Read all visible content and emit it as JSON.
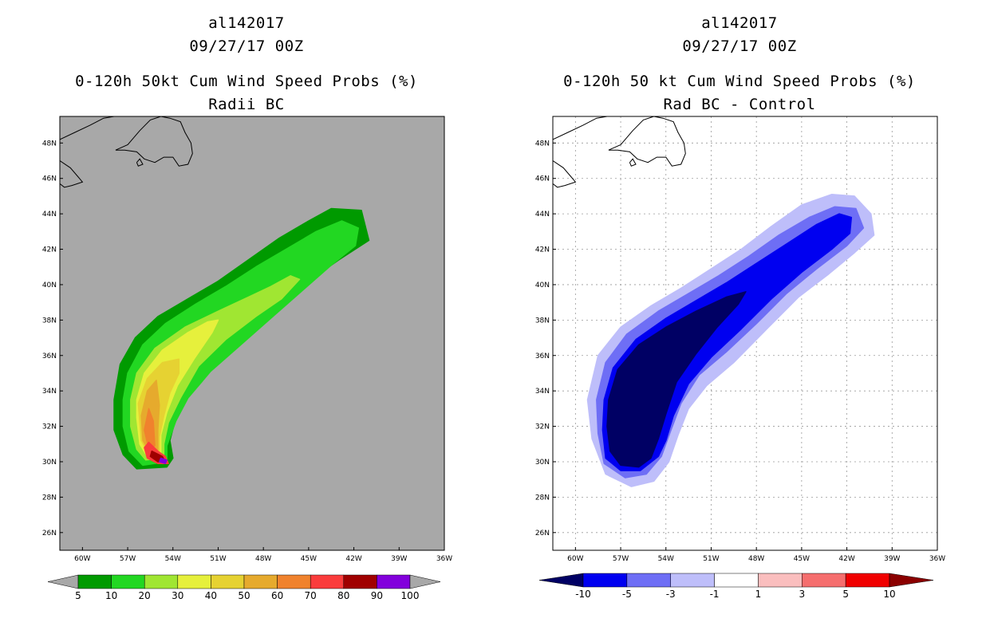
{
  "chart_data": [
    {
      "type": "contour-map",
      "title_lines": [
        "al142017",
        "09/27/17 00Z",
        "0-120h 50kt Cum Wind Speed Probs (%)",
        "Radii BC"
      ],
      "x_ticks": [
        "60W",
        "57W",
        "54W",
        "51W",
        "48W",
        "45W",
        "42W",
        "39W",
        "36W"
      ],
      "y_ticks": [
        "26N",
        "28N",
        "30N",
        "32N",
        "34N",
        "36N",
        "38N",
        "40N",
        "42N",
        "44N",
        "46N",
        "48N"
      ],
      "xlim": [
        -61.5,
        -36
      ],
      "ylim": [
        25,
        49.5
      ],
      "background_color": "#a8a8a8",
      "grid": false,
      "colorbar": {
        "labels": [
          "5",
          "10",
          "20",
          "30",
          "40",
          "50",
          "60",
          "70",
          "80",
          "90",
          "100"
        ],
        "colors": [
          "#009a00",
          "#22d722",
          "#a0e632",
          "#e6f03c",
          "#e6d232",
          "#e6aa2d",
          "#f0822d",
          "#fa3c3c",
          "#a00000",
          "#8200dc"
        ]
      },
      "contours": [
        {
          "level": 5,
          "color": "#009a00",
          "points": [
            [
              -57.9,
              33.5
            ],
            [
              -57.5,
              35.5
            ],
            [
              -56.5,
              37
            ],
            [
              -55,
              38.2
            ],
            [
              -53,
              39.2
            ],
            [
              -51,
              40.2
            ],
            [
              -49,
              41.4
            ],
            [
              -47,
              42.6
            ],
            [
              -45,
              43.6
            ],
            [
              -43.5,
              44.3
            ],
            [
              -41.5,
              44.2
            ],
            [
              -41,
              42.5
            ],
            [
              -43,
              41.4
            ],
            [
              -45,
              40.2
            ],
            [
              -47,
              38.8
            ],
            [
              -49,
              37.2
            ],
            [
              -51,
              35.6
            ],
            [
              -52.6,
              34.3
            ],
            [
              -53.7,
              32.8
            ],
            [
              -54.2,
              31.2
            ],
            [
              -54,
              30.2
            ],
            [
              -54.4,
              29.7
            ],
            [
              -56.4,
              29.6
            ],
            [
              -57.3,
              30.4
            ],
            [
              -57.9,
              31.8
            ]
          ]
        },
        {
          "level": 10,
          "color": "#22d722",
          "points": [
            [
              -57.3,
              33.5
            ],
            [
              -57,
              35
            ],
            [
              -56,
              36.6
            ],
            [
              -54.5,
              37.8
            ],
            [
              -52.5,
              38.9
            ],
            [
              -50.5,
              39.9
            ],
            [
              -48.5,
              41
            ],
            [
              -46.5,
              42
            ],
            [
              -44.5,
              43
            ],
            [
              -42.8,
              43.6
            ],
            [
              -41.7,
              43.2
            ],
            [
              -41.9,
              42.2
            ],
            [
              -43.5,
              41.1
            ],
            [
              -45.5,
              39.6
            ],
            [
              -47.5,
              38.1
            ],
            [
              -49.5,
              36.6
            ],
            [
              -51.5,
              35.1
            ],
            [
              -53,
              33.6
            ],
            [
              -53.8,
              32.3
            ],
            [
              -54.4,
              30.9
            ],
            [
              -54.4,
              30
            ],
            [
              -56,
              29.8
            ],
            [
              -56.9,
              30.6
            ],
            [
              -57.3,
              32
            ]
          ]
        },
        {
          "level": 20,
          "color": "#a0e632",
          "points": [
            [
              -56.8,
              33.5
            ],
            [
              -56.4,
              35
            ],
            [
              -55.2,
              36.4
            ],
            [
              -53.2,
              37.6
            ],
            [
              -51,
              38.5
            ],
            [
              -49,
              39.3
            ],
            [
              -47.5,
              39.9
            ],
            [
              -46.2,
              40.5
            ],
            [
              -45.6,
              40.3
            ],
            [
              -46.8,
              39.2
            ],
            [
              -48.5,
              38.2
            ],
            [
              -50.5,
              36.9
            ],
            [
              -52.3,
              35.4
            ],
            [
              -53.5,
              33.6
            ],
            [
              -54.3,
              32.2
            ],
            [
              -54.6,
              31
            ],
            [
              -54.6,
              30.2
            ],
            [
              -55.8,
              30.1
            ],
            [
              -56.4,
              30.7
            ],
            [
              -56.8,
              32
            ]
          ]
        },
        {
          "level": 30,
          "color": "#e6f03c",
          "points": [
            [
              -56.4,
              33.5
            ],
            [
              -55.9,
              35
            ],
            [
              -54.7,
              36.3
            ],
            [
              -53,
              37.3
            ],
            [
              -51.7,
              37.9
            ],
            [
              -51,
              38
            ],
            [
              -51.4,
              37.3
            ],
            [
              -52.6,
              35.8
            ],
            [
              -53.7,
              34.3
            ],
            [
              -54.4,
              32.8
            ],
            [
              -54.8,
              31.5
            ],
            [
              -54.8,
              30.3
            ],
            [
              -55.7,
              30.3
            ],
            [
              -56.2,
              31
            ],
            [
              -56.4,
              32.5
            ]
          ]
        },
        {
          "level": 40,
          "color": "#e6d232",
          "points": [
            [
              -56.3,
              33.3
            ],
            [
              -55.7,
              34.7
            ],
            [
              -54.7,
              35.6
            ],
            [
              -53.6,
              35.8
            ],
            [
              -53.6,
              35
            ],
            [
              -54.2,
              33.9
            ],
            [
              -54.6,
              32.6
            ],
            [
              -54.9,
              31.4
            ],
            [
              -54.9,
              30.4
            ],
            [
              -55.6,
              30.4
            ],
            [
              -56.1,
              31.2
            ]
          ]
        },
        {
          "level": 50,
          "color": "#e6aa2d",
          "points": [
            [
              -56.1,
              32.6
            ],
            [
              -55.7,
              34
            ],
            [
              -55.1,
              34.6
            ],
            [
              -54.9,
              33.2
            ],
            [
              -55,
              31.8
            ],
            [
              -55,
              30.5
            ],
            [
              -55.5,
              30.5
            ],
            [
              -56,
              31.2
            ]
          ]
        },
        {
          "level": 60,
          "color": "#f0822d",
          "points": [
            [
              -55.9,
              31.8
            ],
            [
              -55.6,
              33
            ],
            [
              -55.3,
              32.3
            ],
            [
              -55.2,
              30.9
            ],
            [
              -55.6,
              30.7
            ]
          ]
        },
        {
          "level": 70,
          "color": "#fa3c3c",
          "points": [
            [
              -55.9,
              30.8
            ],
            [
              -55.6,
              31.1
            ],
            [
              -55,
              30.6
            ],
            [
              -54.5,
              30.3
            ],
            [
              -54.3,
              29.9
            ],
            [
              -55,
              29.9
            ],
            [
              -55.7,
              30.2
            ]
          ]
        },
        {
          "level": 80,
          "color": "#a00000",
          "points": [
            [
              -55.4,
              30.6
            ],
            [
              -54.7,
              30.3
            ],
            [
              -54.5,
              30
            ],
            [
              -55,
              30
            ],
            [
              -55.5,
              30.3
            ]
          ]
        },
        {
          "level": 90,
          "color": "#8200dc",
          "points": [
            [
              -54.8,
              30.2
            ],
            [
              -54.4,
              30.1
            ],
            [
              -54.5,
              29.9
            ],
            [
              -54.9,
              30
            ]
          ]
        }
      ]
    },
    {
      "type": "contour-map",
      "title_lines": [
        "al142017",
        "09/27/17 00Z",
        "0-120h 50 kt Cum Wind Speed Probs (%)",
        "Rad BC - Control"
      ],
      "x_ticks": [
        "60W",
        "57W",
        "54W",
        "51W",
        "48W",
        "45W",
        "42W",
        "39W",
        "36W"
      ],
      "y_ticks": [
        "26N",
        "28N",
        "30N",
        "32N",
        "34N",
        "36N",
        "38N",
        "40N",
        "42N",
        "44N",
        "46N",
        "48N"
      ],
      "xlim": [
        -61.5,
        -36
      ],
      "ylim": [
        25,
        49.5
      ],
      "background_color": "#ffffff",
      "grid": true,
      "colorbar": {
        "labels": [
          "-10",
          "-5",
          "-3",
          "-1",
          "1",
          "3",
          "5",
          "10"
        ],
        "colors": [
          "#000064",
          "#0000f0",
          "#6e6ef5",
          "#bebefa",
          "#ffffff",
          "#fabebe",
          "#f56e6e",
          "#f00000",
          "#8b0000"
        ]
      },
      "contours": [
        {
          "level": -1,
          "color": "#bebefa",
          "points": [
            [
              -59.2,
              33.5
            ],
            [
              -58.5,
              36
            ],
            [
              -57,
              37.6
            ],
            [
              -55,
              38.8
            ],
            [
              -53,
              39.8
            ],
            [
              -51,
              40.9
            ],
            [
              -49,
              42
            ],
            [
              -47,
              43.3
            ],
            [
              -45,
              44.5
            ],
            [
              -43,
              45.1
            ],
            [
              -41.5,
              45
            ],
            [
              -40.4,
              44
            ],
            [
              -40.2,
              42.8
            ],
            [
              -41.5,
              41.8
            ],
            [
              -43.2,
              40.6
            ],
            [
              -45.2,
              39.3
            ],
            [
              -47.3,
              37.5
            ],
            [
              -49.5,
              35.6
            ],
            [
              -51.3,
              34.3
            ],
            [
              -52.5,
              33
            ],
            [
              -53.2,
              31.5
            ],
            [
              -53.8,
              30
            ],
            [
              -54.8,
              28.9
            ],
            [
              -56.3,
              28.6
            ],
            [
              -58,
              29.3
            ],
            [
              -58.9,
              31.3
            ]
          ]
        },
        {
          "level": -3,
          "color": "#6e6ef5",
          "points": [
            [
              -58.6,
              33.5
            ],
            [
              -58,
              35.6
            ],
            [
              -56.6,
              37.2
            ],
            [
              -54.5,
              38.5
            ],
            [
              -52.5,
              39.5
            ],
            [
              -50.5,
              40.5
            ],
            [
              -48.5,
              41.6
            ],
            [
              -46.5,
              42.8
            ],
            [
              -44.5,
              43.8
            ],
            [
              -42.8,
              44.4
            ],
            [
              -41.4,
              44.3
            ],
            [
              -40.9,
              43.2
            ],
            [
              -42,
              42.2
            ],
            [
              -44,
              40.9
            ],
            [
              -46,
              39.5
            ],
            [
              -48,
              37.8
            ],
            [
              -50,
              36.2
            ],
            [
              -51.8,
              34.9
            ],
            [
              -53,
              33.3
            ],
            [
              -53.7,
              31.7
            ],
            [
              -54.3,
              30.3
            ],
            [
              -55.3,
              29.3
            ],
            [
              -56.7,
              29.1
            ],
            [
              -58.1,
              29.9
            ],
            [
              -58.5,
              31.6
            ]
          ]
        },
        {
          "level": -5,
          "color": "#0000f0",
          "points": [
            [
              -58.1,
              33.5
            ],
            [
              -57.5,
              35.3
            ],
            [
              -56,
              36.9
            ],
            [
              -54,
              38.1
            ],
            [
              -52,
              39.1
            ],
            [
              -50,
              40.1
            ],
            [
              -48,
              41.2
            ],
            [
              -46,
              42.3
            ],
            [
              -44,
              43.4
            ],
            [
              -42.5,
              44
            ],
            [
              -41.7,
              43.8
            ],
            [
              -41.8,
              42.9
            ],
            [
              -43,
              42
            ],
            [
              -45,
              40.7
            ],
            [
              -47,
              39.2
            ],
            [
              -49,
              37.5
            ],
            [
              -51,
              35.9
            ],
            [
              -52.5,
              34.4
            ],
            [
              -53.5,
              32.6
            ],
            [
              -54,
              31.2
            ],
            [
              -54.5,
              30.3
            ],
            [
              -55.7,
              29.5
            ],
            [
              -57,
              29.5
            ],
            [
              -58,
              30.2
            ],
            [
              -58.2,
              31.8
            ]
          ]
        },
        {
          "level": -10,
          "color": "#000064",
          "points": [
            [
              -57.8,
              33.5
            ],
            [
              -57.2,
              35.2
            ],
            [
              -55.8,
              36.6
            ],
            [
              -54,
              37.6
            ],
            [
              -52,
              38.5
            ],
            [
              -50,
              39.3
            ],
            [
              -48.7,
              39.6
            ],
            [
              -49.2,
              38.9
            ],
            [
              -50.6,
              37.6
            ],
            [
              -52,
              36.1
            ],
            [
              -53.3,
              34.5
            ],
            [
              -54,
              32.7
            ],
            [
              -54.5,
              31.3
            ],
            [
              -55,
              30.2
            ],
            [
              -55.8,
              29.7
            ],
            [
              -57,
              29.8
            ],
            [
              -57.7,
              30.6
            ],
            [
              -57.9,
              32
            ]
          ]
        }
      ]
    }
  ]
}
